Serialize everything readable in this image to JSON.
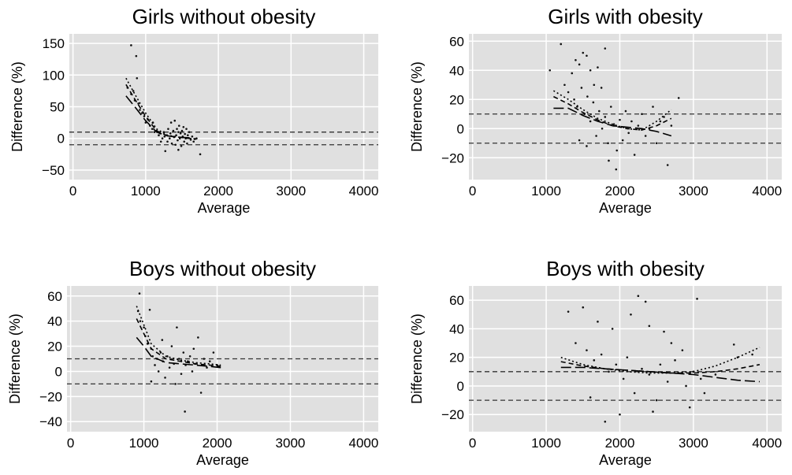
{
  "chart_data": [
    {
      "type": "scatter",
      "title": "Girls without obesity",
      "xlabel": "Average",
      "ylabel": "Difference (%)",
      "xlim": [
        -50,
        4200
      ],
      "ylim": [
        -65,
        165
      ],
      "xticks": [
        0,
        1000,
        2000,
        3000,
        4000
      ],
      "yticks": [
        -50,
        0,
        50,
        100,
        150
      ],
      "reference_lines": [
        10,
        -10
      ],
      "grid": true,
      "lines": [
        {
          "style": "dotted",
          "x": [
            730,
            850,
            1000,
            1150,
            1300,
            1450,
            1600,
            1700
          ],
          "y": [
            95,
            70,
            40,
            15,
            5,
            2,
            0,
            -2
          ]
        },
        {
          "style": "dashed",
          "x": [
            730,
            850,
            1000,
            1150,
            1300,
            1450,
            1600,
            1700
          ],
          "y": [
            85,
            62,
            35,
            12,
            4,
            2,
            0,
            -1
          ]
        },
        {
          "style": "long-dash",
          "x": [
            730,
            850,
            1000,
            1150,
            1300,
            1450,
            1600,
            1700
          ],
          "y": [
            67,
            50,
            28,
            10,
            4,
            2,
            1,
            -1
          ]
        }
      ],
      "points": [
        {
          "x": 800,
          "y": 147
        },
        {
          "x": 870,
          "y": 130
        },
        {
          "x": 880,
          "y": 95
        },
        {
          "x": 750,
          "y": 80
        },
        {
          "x": 800,
          "y": 70
        },
        {
          "x": 830,
          "y": 75
        },
        {
          "x": 850,
          "y": 60
        },
        {
          "x": 900,
          "y": 55
        },
        {
          "x": 920,
          "y": 45
        },
        {
          "x": 950,
          "y": 40
        },
        {
          "x": 980,
          "y": 35
        },
        {
          "x": 1000,
          "y": 25
        },
        {
          "x": 1030,
          "y": 30
        },
        {
          "x": 1060,
          "y": 20
        },
        {
          "x": 1090,
          "y": 15
        },
        {
          "x": 1100,
          "y": 25
        },
        {
          "x": 1120,
          "y": 10
        },
        {
          "x": 1150,
          "y": 12
        },
        {
          "x": 1180,
          "y": 5
        },
        {
          "x": 1200,
          "y": 8
        },
        {
          "x": 1210,
          "y": -5
        },
        {
          "x": 1230,
          "y": 0
        },
        {
          "x": 1250,
          "y": 10
        },
        {
          "x": 1260,
          "y": 3
        },
        {
          "x": 1270,
          "y": -20
        },
        {
          "x": 1290,
          "y": 5
        },
        {
          "x": 1300,
          "y": -5
        },
        {
          "x": 1310,
          "y": 15
        },
        {
          "x": 1330,
          "y": 0
        },
        {
          "x": 1340,
          "y": 8
        },
        {
          "x": 1350,
          "y": 25
        },
        {
          "x": 1360,
          "y": -8
        },
        {
          "x": 1380,
          "y": 12
        },
        {
          "x": 1390,
          "y": 2
        },
        {
          "x": 1400,
          "y": 28
        },
        {
          "x": 1410,
          "y": -10
        },
        {
          "x": 1420,
          "y": 5
        },
        {
          "x": 1430,
          "y": 15
        },
        {
          "x": 1440,
          "y": -3
        },
        {
          "x": 1450,
          "y": 10
        },
        {
          "x": 1460,
          "y": 20
        },
        {
          "x": 1470,
          "y": 0
        },
        {
          "x": 1480,
          "y": 8
        },
        {
          "x": 1490,
          "y": -12
        },
        {
          "x": 1500,
          "y": 12
        },
        {
          "x": 1510,
          "y": 3
        },
        {
          "x": 1520,
          "y": 18
        },
        {
          "x": 1530,
          "y": -5
        },
        {
          "x": 1540,
          "y": 7
        },
        {
          "x": 1550,
          "y": 0
        },
        {
          "x": 1560,
          "y": 15
        },
        {
          "x": 1570,
          "y": -8
        },
        {
          "x": 1580,
          "y": 5
        },
        {
          "x": 1600,
          "y": 10
        },
        {
          "x": 1620,
          "y": -2
        },
        {
          "x": 1640,
          "y": 3
        },
        {
          "x": 1660,
          "y": -5
        },
        {
          "x": 1700,
          "y": 0
        },
        {
          "x": 1750,
          "y": -25
        },
        {
          "x": 1450,
          "y": -18
        }
      ]
    },
    {
      "type": "scatter",
      "title": "Girls with obesity",
      "xlabel": "Average",
      "ylabel": "Difference (%)",
      "xlim": [
        -50,
        4200
      ],
      "ylim": [
        -35,
        65
      ],
      "xticks": [
        0,
        1000,
        2000,
        3000,
        4000
      ],
      "yticks": [
        -20,
        0,
        20,
        40,
        60
      ],
      "reference_lines": [
        10,
        -10
      ],
      "grid": true,
      "lines": [
        {
          "style": "dotted",
          "x": [
            1100,
            1300,
            1500,
            1700,
            1900,
            2100,
            2300,
            2500,
            2700
          ],
          "y": [
            26,
            20,
            13,
            7,
            3,
            0,
            -1,
            5,
            13
          ]
        },
        {
          "style": "dashed",
          "x": [
            1100,
            1300,
            1500,
            1700,
            1900,
            2100,
            2300,
            2500,
            2700
          ],
          "y": [
            22,
            17,
            11,
            6,
            2,
            0,
            -1,
            2,
            7
          ]
        },
        {
          "style": "long-dash",
          "x": [
            1100,
            1300,
            1500,
            1700,
            1900,
            2100,
            2300,
            2500,
            2700
          ],
          "y": [
            14,
            14,
            9,
            5,
            2,
            1,
            0,
            -2,
            -5
          ]
        }
      ],
      "points": [
        {
          "x": 1200,
          "y": 58
        },
        {
          "x": 1050,
          "y": 40
        },
        {
          "x": 1500,
          "y": 52
        },
        {
          "x": 1550,
          "y": 50
        },
        {
          "x": 1800,
          "y": 55
        },
        {
          "x": 1400,
          "y": 47
        },
        {
          "x": 1450,
          "y": 44
        },
        {
          "x": 1350,
          "y": 38
        },
        {
          "x": 1600,
          "y": 40
        },
        {
          "x": 1700,
          "y": 42
        },
        {
          "x": 1250,
          "y": 30
        },
        {
          "x": 1300,
          "y": 25
        },
        {
          "x": 1380,
          "y": 20
        },
        {
          "x": 1420,
          "y": 15
        },
        {
          "x": 1480,
          "y": 28
        },
        {
          "x": 1520,
          "y": 10
        },
        {
          "x": 1560,
          "y": 22
        },
        {
          "x": 1600,
          "y": 5
        },
        {
          "x": 1640,
          "y": 18
        },
        {
          "x": 1680,
          "y": -5
        },
        {
          "x": 1720,
          "y": 12
        },
        {
          "x": 1760,
          "y": 0
        },
        {
          "x": 1800,
          "y": 8
        },
        {
          "x": 1840,
          "y": -10
        },
        {
          "x": 1880,
          "y": 15
        },
        {
          "x": 1920,
          "y": 3
        },
        {
          "x": 1960,
          "y": -15
        },
        {
          "x": 2000,
          "y": 6
        },
        {
          "x": 2040,
          "y": -8
        },
        {
          "x": 2080,
          "y": 12
        },
        {
          "x": 2120,
          "y": -3
        },
        {
          "x": 2160,
          "y": 5
        },
        {
          "x": 2200,
          "y": -18
        },
        {
          "x": 2250,
          "y": 2
        },
        {
          "x": 2300,
          "y": 10
        },
        {
          "x": 2350,
          "y": -5
        },
        {
          "x": 2400,
          "y": 0
        },
        {
          "x": 2450,
          "y": 15
        },
        {
          "x": 2500,
          "y": -10
        },
        {
          "x": 2550,
          "y": 5
        },
        {
          "x": 2600,
          "y": 8
        },
        {
          "x": 2650,
          "y": -25
        },
        {
          "x": 2700,
          "y": 2
        },
        {
          "x": 2800,
          "y": 21
        },
        {
          "x": 1950,
          "y": -28
        },
        {
          "x": 1850,
          "y": -22
        },
        {
          "x": 1750,
          "y": 28
        },
        {
          "x": 1650,
          "y": 30
        },
        {
          "x": 1550,
          "y": -12
        },
        {
          "x": 1450,
          "y": -8
        }
      ]
    },
    {
      "type": "scatter",
      "title": "Boys without obesity",
      "xlabel": "Average",
      "ylabel": "Difference (%)",
      "xlim": [
        -50,
        4200
      ],
      "ylim": [
        -48,
        68
      ],
      "xticks": [
        0,
        1000,
        2000,
        3000,
        4000
      ],
      "yticks": [
        -40,
        -20,
        0,
        20,
        40,
        60
      ],
      "reference_lines": [
        10,
        -10
      ],
      "grid": true,
      "lines": [
        {
          "style": "dotted",
          "x": [
            900,
            1000,
            1100,
            1300,
            1500,
            1700,
            1900,
            2050
          ],
          "y": [
            52,
            37,
            22,
            12,
            9,
            7,
            6,
            5
          ]
        },
        {
          "style": "dashed",
          "x": [
            900,
            1000,
            1100,
            1300,
            1500,
            1700,
            1900,
            2050
          ],
          "y": [
            42,
            30,
            18,
            10,
            8,
            6,
            5,
            4
          ]
        },
        {
          "style": "long-dash",
          "x": [
            900,
            1000,
            1100,
            1300,
            1500,
            1700,
            1900,
            2050
          ],
          "y": [
            27,
            20,
            12,
            7,
            6,
            5,
            4,
            3
          ]
        }
      ],
      "points": [
        {
          "x": 940,
          "y": 62
        },
        {
          "x": 1080,
          "y": 49
        },
        {
          "x": 920,
          "y": 48
        },
        {
          "x": 950,
          "y": 40
        },
        {
          "x": 1000,
          "y": 35
        },
        {
          "x": 1020,
          "y": 28
        },
        {
          "x": 1050,
          "y": 22
        },
        {
          "x": 1100,
          "y": 18
        },
        {
          "x": 1120,
          "y": 12
        },
        {
          "x": 1150,
          "y": 5
        },
        {
          "x": 1180,
          "y": 10
        },
        {
          "x": 1200,
          "y": 0
        },
        {
          "x": 1230,
          "y": 15
        },
        {
          "x": 1260,
          "y": 8
        },
        {
          "x": 1290,
          "y": -5
        },
        {
          "x": 1320,
          "y": 12
        },
        {
          "x": 1350,
          "y": 3
        },
        {
          "x": 1380,
          "y": 20
        },
        {
          "x": 1410,
          "y": 6
        },
        {
          "x": 1450,
          "y": 35
        },
        {
          "x": 1480,
          "y": 10
        },
        {
          "x": 1510,
          "y": -2
        },
        {
          "x": 1540,
          "y": 15
        },
        {
          "x": 1570,
          "y": 5
        },
        {
          "x": 1560,
          "y": -32
        },
        {
          "x": 1600,
          "y": 8
        },
        {
          "x": 1630,
          "y": 12
        },
        {
          "x": 1660,
          "y": 0
        },
        {
          "x": 1700,
          "y": 6
        },
        {
          "x": 1740,
          "y": 27
        },
        {
          "x": 1780,
          "y": -17
        },
        {
          "x": 1820,
          "y": 10
        },
        {
          "x": 1860,
          "y": 3
        },
        {
          "x": 1900,
          "y": 8
        },
        {
          "x": 1950,
          "y": 15
        },
        {
          "x": 2000,
          "y": 5
        },
        {
          "x": 1100,
          "y": -8
        },
        {
          "x": 1250,
          "y": 25
        },
        {
          "x": 1430,
          "y": -10
        },
        {
          "x": 1680,
          "y": 18
        }
      ]
    },
    {
      "type": "scatter",
      "title": "Boys with obesity",
      "xlabel": "Average",
      "ylabel": "Difference (%)",
      "xlim": [
        -50,
        4200
      ],
      "ylim": [
        -32,
        70
      ],
      "xticks": [
        0,
        1000,
        2000,
        3000,
        4000
      ],
      "yticks": [
        -20,
        0,
        20,
        40,
        60
      ],
      "reference_lines": [
        10,
        -10
      ],
      "grid": true,
      "lines": [
        {
          "style": "dotted",
          "x": [
            1200,
            1500,
            1800,
            2100,
            2400,
            2700,
            3000,
            3300,
            3600,
            3900
          ],
          "y": [
            20,
            15,
            12,
            10,
            9,
            9,
            10,
            14,
            20,
            27
          ]
        },
        {
          "style": "dashed",
          "x": [
            1200,
            1500,
            1800,
            2100,
            2400,
            2700,
            3000,
            3300,
            3600,
            3900
          ],
          "y": [
            17,
            14,
            12,
            11,
            10,
            9,
            9,
            10,
            12,
            15
          ]
        },
        {
          "style": "long-dash",
          "x": [
            1200,
            1500,
            1800,
            2100,
            2400,
            2700,
            3000,
            3300,
            3600,
            3900
          ],
          "y": [
            13,
            13,
            12,
            11,
            10,
            9,
            8,
            6,
            4,
            3
          ]
        }
      ],
      "points": [
        {
          "x": 2250,
          "y": 63
        },
        {
          "x": 2350,
          "y": 59
        },
        {
          "x": 3050,
          "y": 61
        },
        {
          "x": 1300,
          "y": 52
        },
        {
          "x": 1500,
          "y": 55
        },
        {
          "x": 2150,
          "y": 50
        },
        {
          "x": 1700,
          "y": 45
        },
        {
          "x": 1900,
          "y": 40
        },
        {
          "x": 2400,
          "y": 42
        },
        {
          "x": 2600,
          "y": 38
        },
        {
          "x": 1400,
          "y": 30
        },
        {
          "x": 1550,
          "y": 25
        },
        {
          "x": 1650,
          "y": 18
        },
        {
          "x": 1750,
          "y": 22
        },
        {
          "x": 1850,
          "y": 10
        },
        {
          "x": 1950,
          "y": 15
        },
        {
          "x": 2050,
          "y": 5
        },
        {
          "x": 2100,
          "y": 20
        },
        {
          "x": 2200,
          "y": -5
        },
        {
          "x": 2300,
          "y": 12
        },
        {
          "x": 2400,
          "y": 8
        },
        {
          "x": 2500,
          "y": -10
        },
        {
          "x": 2550,
          "y": 15
        },
        {
          "x": 2650,
          "y": 3
        },
        {
          "x": 2750,
          "y": 18
        },
        {
          "x": 2850,
          "y": 25
        },
        {
          "x": 2950,
          "y": -15
        },
        {
          "x": 3000,
          "y": 10
        },
        {
          "x": 3100,
          "y": 5
        },
        {
          "x": 3150,
          "y": -5
        },
        {
          "x": 3300,
          "y": 8
        },
        {
          "x": 3550,
          "y": 29
        },
        {
          "x": 3600,
          "y": 20
        },
        {
          "x": 3800,
          "y": 22
        },
        {
          "x": 1800,
          "y": -25
        },
        {
          "x": 2000,
          "y": -20
        },
        {
          "x": 2450,
          "y": -18
        },
        {
          "x": 1600,
          "y": -8
        },
        {
          "x": 2700,
          "y": 30
        },
        {
          "x": 2900,
          "y": 0
        }
      ]
    }
  ]
}
